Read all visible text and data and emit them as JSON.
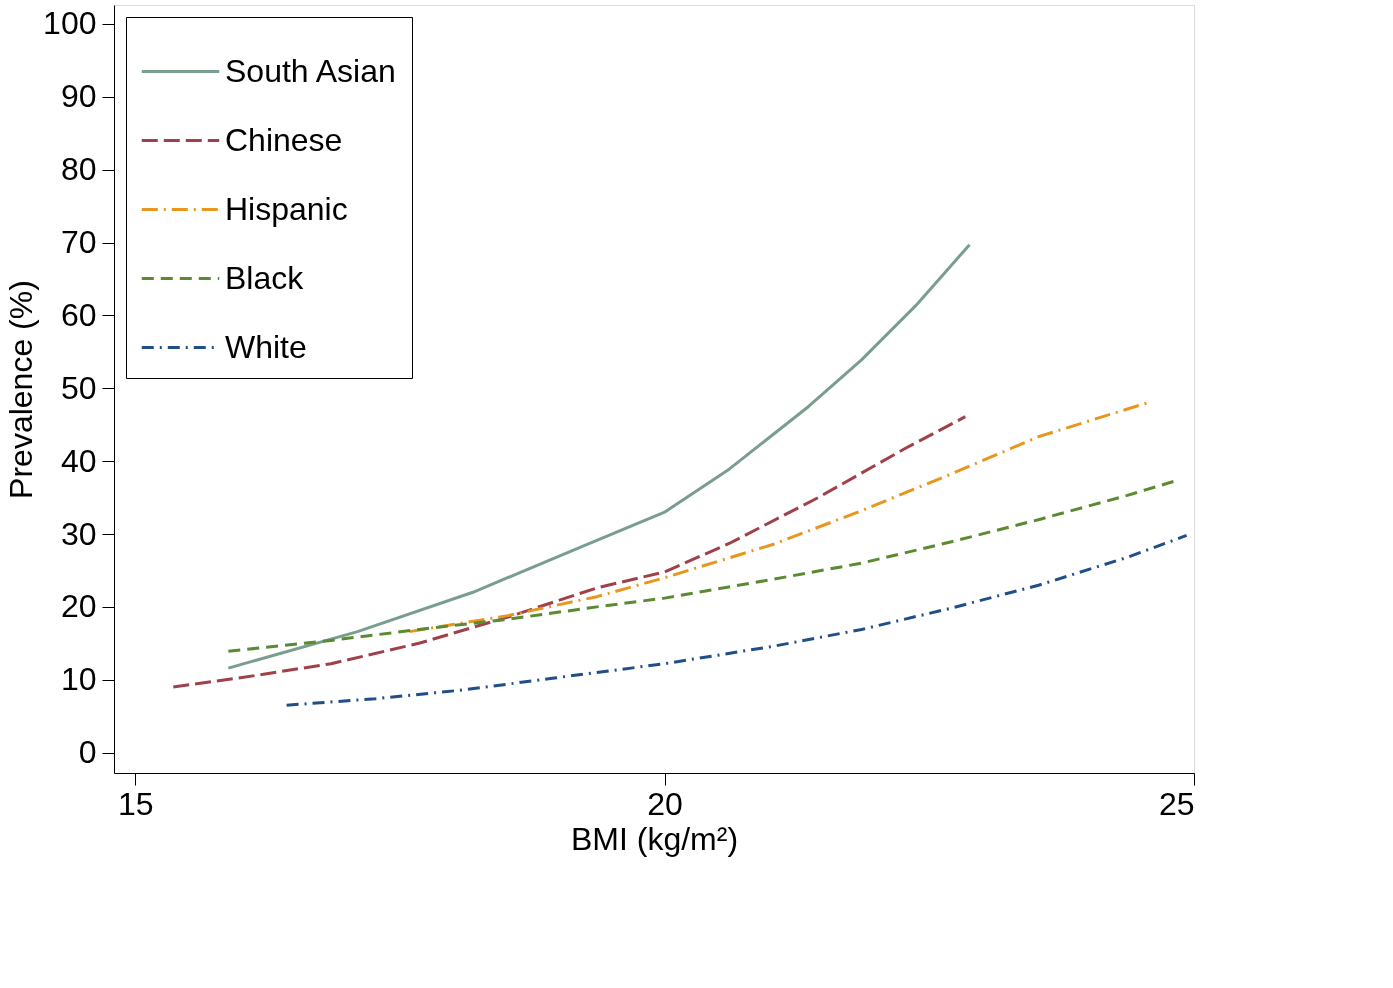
{
  "chart_data": {
    "type": "line",
    "xlabel": "BMI (kg/m²)",
    "ylabel": "Prevalence (%)",
    "xlim": [
      14.8,
      25.0
    ],
    "ylim": [
      -2.8,
      102.6
    ],
    "xticks": [
      15,
      20,
      25
    ],
    "yticks": [
      0,
      10,
      20,
      30,
      40,
      50,
      60,
      70,
      80,
      90,
      100
    ],
    "grid": false,
    "legend": "top left",
    "marker": "none",
    "series": [
      {
        "name": "South Asian",
        "color": "#7a9e8e",
        "line_style": "solid",
        "x": [
          15.88,
          17.1,
          18.19,
          19.19,
          20.0,
          20.61,
          21.36,
          21.86,
          22.37,
          22.88
        ],
        "values": [
          11.6,
          16.6,
          22.0,
          28.1,
          33.0,
          38.9,
          47.5,
          53.9,
          61.3,
          69.7
        ]
      },
      {
        "name": "Chinese",
        "color": "#a0404a",
        "line_style": "dashed",
        "x": [
          15.36,
          16.01,
          16.85,
          17.68,
          18.52,
          19.36,
          20.0,
          20.61,
          21.45,
          22.28,
          22.84
        ],
        "values": [
          9.0,
          10.3,
          12.2,
          15.0,
          18.6,
          22.6,
          24.8,
          28.7,
          35.0,
          41.8,
          46.1
        ]
      },
      {
        "name": "Hispanic",
        "color": "#e8961e",
        "line_style": "dashed",
        "x": [
          17.59,
          18.52,
          19.36,
          20.0,
          21.03,
          21.86,
          22.7,
          23.54,
          24.56
        ],
        "values": [
          16.6,
          18.8,
          21.4,
          24.0,
          28.6,
          33.2,
          38.2,
          43.4,
          48.0
        ]
      },
      {
        "name": "Black",
        "color": "#5a8a32",
        "line_style": "dashed",
        "x": [
          15.88,
          16.85,
          17.68,
          18.52,
          19.36,
          20.0,
          21.03,
          21.86,
          22.7,
          23.54,
          24.37,
          24.85
        ],
        "values": [
          13.9,
          15.4,
          16.9,
          18.3,
          20.0,
          21.2,
          23.8,
          26.0,
          28.9,
          32.0,
          35.3,
          37.4
        ]
      },
      {
        "name": "White",
        "color": "#1f4e88",
        "line_style": "dashed",
        "x": [
          16.43,
          17.27,
          18.1,
          18.94,
          20.0,
          21.03,
          21.86,
          22.7,
          23.54,
          24.37,
          24.93
        ],
        "values": [
          6.5,
          7.4,
          8.6,
          10.2,
          12.2,
          14.6,
          16.9,
          19.8,
          23.0,
          26.8,
          29.8
        ]
      }
    ]
  }
}
